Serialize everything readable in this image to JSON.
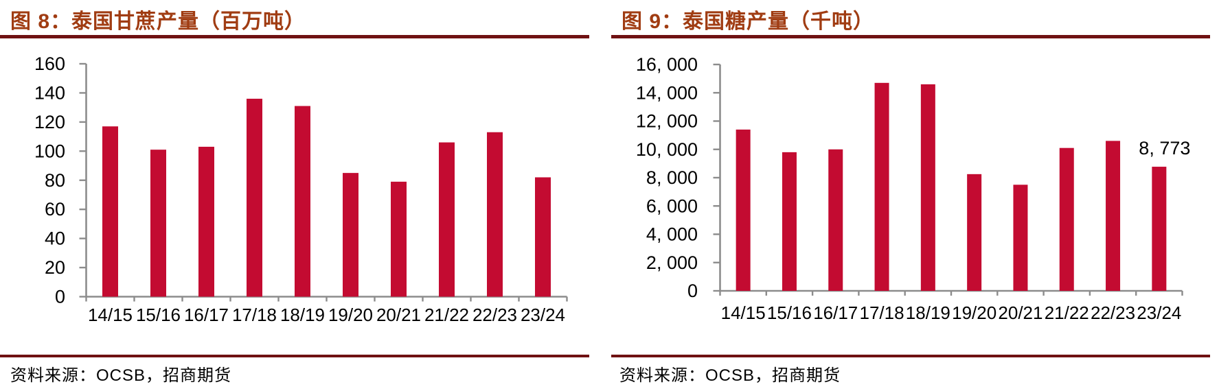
{
  "colors": {
    "bar": "#C30B31",
    "title": "#A03C12",
    "rule": "#6F1112",
    "axis": "#8C8C8C",
    "text": "#000000",
    "background": "#FFFFFF"
  },
  "chart_data": [
    {
      "type": "bar",
      "title": "图 8：泰国甘蔗产量（百万吨）",
      "source": "资料来源：OCSB，招商期货",
      "categories": [
        "14/15",
        "15/16",
        "16/17",
        "17/18",
        "18/19",
        "19/20",
        "20/21",
        "21/22",
        "22/23",
        "23/24"
      ],
      "values": [
        117,
        101,
        103,
        136,
        131,
        85,
        79,
        106,
        113,
        82
      ],
      "xlabel": "",
      "ylabel": "",
      "ylim": [
        0,
        160
      ],
      "ytick_step": 20,
      "ytick_labels": [
        "0",
        "20",
        "40",
        "60",
        "80",
        "100",
        "120",
        "140",
        "160"
      ],
      "grid": false,
      "legend": "none"
    },
    {
      "type": "bar",
      "title": "图 9：泰国糖产量（千吨）",
      "source": "资料来源：OCSB，招商期货",
      "categories": [
        "14/15",
        "15/16",
        "16/17",
        "17/18",
        "18/19",
        "19/20",
        "20/21",
        "21/22",
        "22/23",
        "23/24"
      ],
      "values": [
        11400,
        9800,
        10000,
        14700,
        14600,
        8250,
        7500,
        10100,
        10600,
        8773
      ],
      "xlabel": "",
      "ylabel": "",
      "ylim": [
        0,
        16000
      ],
      "ytick_step": 2000,
      "ytick_labels": [
        "0",
        "2, 000",
        "4, 000",
        "6, 000",
        "8, 000",
        "10, 000",
        "12, 000",
        "14, 000",
        "16, 000"
      ],
      "grid": false,
      "legend": "none",
      "annotation": {
        "index": 9,
        "text": "8, 773"
      }
    }
  ]
}
